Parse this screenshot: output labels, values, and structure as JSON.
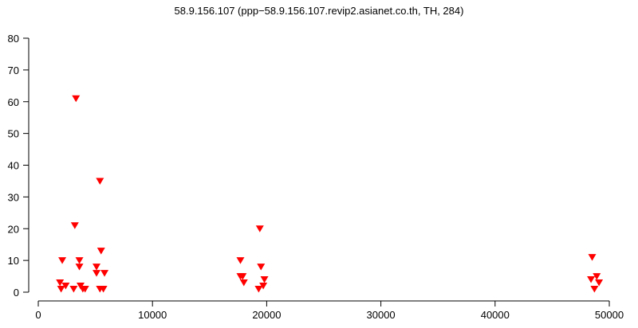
{
  "chart_data": {
    "type": "scatter",
    "title": "58.9.156.107 (ppp−58.9.156.107.revip2.asianet.co.th, TH, 284)",
    "xlabel": "",
    "ylabel": "",
    "xlim": [
      0,
      50000
    ],
    "ylim": [
      0,
      80
    ],
    "x_ticks": [
      0,
      10000,
      20000,
      30000,
      40000,
      50000
    ],
    "y_ticks": [
      0,
      10,
      20,
      30,
      40,
      50,
      60,
      70,
      80
    ],
    "x_tick_labels": [
      "0",
      "10000",
      "20000",
      "30000",
      "40000",
      "50000"
    ],
    "y_tick_labels": [
      "0",
      "10",
      "20",
      "30",
      "40",
      "50",
      "60",
      "70",
      "80"
    ],
    "marker": "triangle-down",
    "color": "#ff0000",
    "grid": false,
    "series": [
      {
        "points": [
          [
            1900,
            3
          ],
          [
            2000,
            1
          ],
          [
            2100,
            10
          ],
          [
            2400,
            2
          ],
          [
            3200,
            21
          ],
          [
            3300,
            61
          ],
          [
            3100,
            1
          ],
          [
            3600,
            10
          ],
          [
            3600,
            8
          ],
          [
            3700,
            2
          ],
          [
            3900,
            1
          ],
          [
            4100,
            1
          ],
          [
            5100,
            8
          ],
          [
            5100,
            6
          ],
          [
            5400,
            35
          ],
          [
            5500,
            13
          ],
          [
            5800,
            6
          ],
          [
            5400,
            1
          ],
          [
            5700,
            1
          ],
          [
            17700,
            10
          ],
          [
            17700,
            5
          ],
          [
            17900,
            5
          ],
          [
            18000,
            3
          ],
          [
            19400,
            20
          ],
          [
            19500,
            8
          ],
          [
            19800,
            4
          ],
          [
            19700,
            2
          ],
          [
            19300,
            1
          ],
          [
            48500,
            11
          ],
          [
            48400,
            4
          ],
          [
            48900,
            5
          ],
          [
            49100,
            3
          ],
          [
            48700,
            1
          ]
        ]
      }
    ]
  }
}
